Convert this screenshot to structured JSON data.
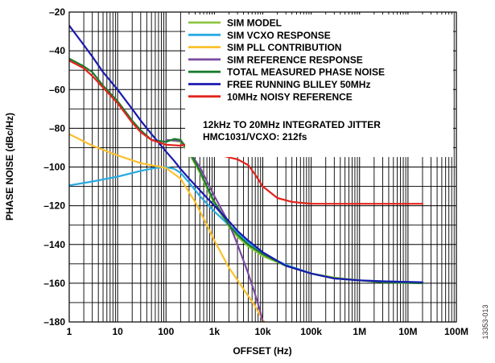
{
  "chart_data": {
    "type": "line",
    "xscale": "log",
    "xlabel": "OFFSET (Hz)",
    "ylabel": "PHASE NOISE (dBc/Hz)",
    "xlim": [
      1,
      100000000
    ],
    "ylim": [
      -180,
      -20
    ],
    "grid": true,
    "legend_position": "top-right",
    "x_ticks": [
      1,
      10,
      100,
      1000,
      10000,
      100000,
      1000000,
      10000000,
      100000000
    ],
    "x_tick_labels": [
      "1",
      "10",
      "100",
      "1k",
      "10k",
      "100k",
      "1M",
      "10M",
      "100M"
    ],
    "y_ticks": [
      -20,
      -40,
      -60,
      -80,
      -100,
      -120,
      -140,
      -160,
      -180
    ],
    "y_tick_labels": [
      "–20",
      "–40",
      "–60",
      "–80",
      "–100",
      "–120",
      "–140",
      "–160",
      "–180"
    ],
    "annotation": [
      "12kHz TO 20MHz INTEGRATED JITTER",
      "HMC1031/VCXO: 212fs"
    ],
    "figure_id": "13353-013",
    "series": [
      {
        "name": "SIM MODEL",
        "color": "#8cc63f",
        "points": [
          [
            100,
            -86
          ],
          [
            150,
            -86.5
          ],
          [
            200,
            -87
          ],
          [
            300,
            -93
          ],
          [
            500,
            -103
          ],
          [
            700,
            -111
          ],
          [
            1000,
            -119
          ],
          [
            1500,
            -126
          ],
          [
            2000,
            -131
          ],
          [
            3000,
            -136
          ],
          [
            5000,
            -141
          ],
          [
            10000,
            -146
          ],
          [
            30000,
            -151
          ],
          [
            100000,
            -155
          ],
          [
            300000,
            -157
          ],
          [
            1000000,
            -158.5
          ],
          [
            3000000,
            -159.5
          ],
          [
            20000000,
            -160
          ]
        ]
      },
      {
        "name": "SIM VCXO RESPONSE",
        "color": "#29abe2",
        "points": [
          [
            1,
            -109.5
          ],
          [
            3,
            -107.5
          ],
          [
            10,
            -105
          ],
          [
            30,
            -102
          ],
          [
            60,
            -100.5
          ],
          [
            100,
            -100
          ],
          [
            150,
            -101
          ],
          [
            200,
            -103
          ],
          [
            300,
            -108
          ],
          [
            500,
            -115
          ],
          [
            1000,
            -123
          ],
          [
            2000,
            -130
          ],
          [
            3000,
            -134
          ],
          [
            5000,
            -139
          ],
          [
            10000,
            -145
          ],
          [
            30000,
            -150.5
          ],
          [
            100000,
            -155
          ],
          [
            300000,
            -157.5
          ],
          [
            1000000,
            -158.5
          ],
          [
            3000000,
            -159
          ],
          [
            20000000,
            -159.5
          ]
        ]
      },
      {
        "name": "SIM PLL CONTRIBUTION",
        "color": "#fbc02d",
        "points": [
          [
            1,
            -83
          ],
          [
            3,
            -89
          ],
          [
            10,
            -94
          ],
          [
            30,
            -98
          ],
          [
            100,
            -100.5
          ],
          [
            200,
            -106
          ],
          [
            400,
            -118
          ],
          [
            700,
            -130
          ],
          [
            1000,
            -138
          ],
          [
            2000,
            -152
          ],
          [
            4000,
            -163
          ],
          [
            7000,
            -172
          ],
          [
            10000,
            -179
          ],
          [
            11000,
            -180
          ]
        ]
      },
      {
        "name": "SIM REFERENCE RESPONSE",
        "color": "#7b4aa0",
        "points": [
          [
            100,
            -86
          ],
          [
            200,
            -86.5
          ],
          [
            300,
            -92
          ],
          [
            500,
            -100
          ],
          [
            1000,
            -115
          ],
          [
            2000,
            -129
          ],
          [
            3000,
            -140
          ],
          [
            5000,
            -155
          ],
          [
            7000,
            -166
          ],
          [
            9000,
            -175
          ],
          [
            10000,
            -180
          ]
        ]
      },
      {
        "name": "TOTAL MEASURED PHASE NOISE",
        "color": "#1a7a2e",
        "points": [
          [
            1,
            -44
          ],
          [
            2,
            -48
          ],
          [
            3,
            -51
          ],
          [
            5,
            -58
          ],
          [
            10,
            -66
          ],
          [
            20,
            -76
          ],
          [
            30,
            -81
          ],
          [
            50,
            -86
          ],
          [
            100,
            -87
          ],
          [
            150,
            -85.5
          ],
          [
            200,
            -86
          ],
          [
            300,
            -92
          ],
          [
            500,
            -102
          ],
          [
            700,
            -110
          ],
          [
            1000,
            -118
          ],
          [
            2000,
            -130
          ],
          [
            3000,
            -135
          ],
          [
            5000,
            -140
          ],
          [
            10000,
            -145
          ],
          [
            30000,
            -151
          ],
          [
            100000,
            -155
          ],
          [
            300000,
            -157.5
          ],
          [
            1000000,
            -158.5
          ],
          [
            3000000,
            -159.5
          ],
          [
            20000000,
            -160
          ]
        ]
      },
      {
        "name": "FREE RUNNING BLILEY 50MHz",
        "color": "#1a1aaf",
        "points": [
          [
            1,
            -27
          ],
          [
            2,
            -37
          ],
          [
            3,
            -43
          ],
          [
            5,
            -51
          ],
          [
            10,
            -60
          ],
          [
            20,
            -70
          ],
          [
            30,
            -76
          ],
          [
            50,
            -83
          ],
          [
            100,
            -92
          ],
          [
            150,
            -97
          ],
          [
            200,
            -101
          ],
          [
            300,
            -106
          ],
          [
            500,
            -112
          ],
          [
            1000,
            -120
          ],
          [
            2000,
            -128
          ],
          [
            3000,
            -133
          ],
          [
            5000,
            -138
          ],
          [
            10000,
            -144
          ],
          [
            30000,
            -151
          ],
          [
            100000,
            -155
          ],
          [
            300000,
            -157.5
          ],
          [
            1000000,
            -158.5
          ],
          [
            3000000,
            -159
          ],
          [
            20000000,
            -159.5
          ]
        ]
      },
      {
        "name": "10MHz NOISY REFERENCE",
        "color": "#e3231b",
        "points": [
          [
            1,
            -45
          ],
          [
            2,
            -49
          ],
          [
            3,
            -53
          ],
          [
            5,
            -59
          ],
          [
            10,
            -67
          ],
          [
            20,
            -77
          ],
          [
            30,
            -82
          ],
          [
            50,
            -86
          ],
          [
            100,
            -88.5
          ],
          [
            200,
            -89
          ],
          [
            300,
            -88
          ],
          [
            400,
            -89.5
          ],
          [
            500,
            -91
          ],
          [
            700,
            -91.5
          ],
          [
            1000,
            -93
          ],
          [
            2000,
            -95
          ],
          [
            3000,
            -96
          ],
          [
            5000,
            -99
          ],
          [
            7000,
            -104
          ],
          [
            10000,
            -110
          ],
          [
            20000,
            -116
          ],
          [
            40000,
            -118
          ],
          [
            100000,
            -119
          ],
          [
            1000000,
            -119
          ],
          [
            20000000,
            -119
          ]
        ]
      }
    ]
  }
}
